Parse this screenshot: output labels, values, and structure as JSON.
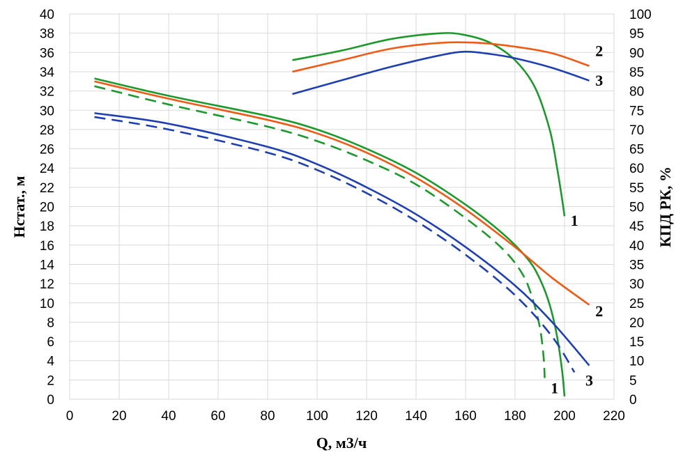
{
  "chart_data": {
    "type": "line",
    "xlabel": "Q, м3/ч",
    "ylabel_left": "Нстат., м",
    "ylabel_right": "КПД РК, %",
    "xlim": [
      0,
      220
    ],
    "ylim_left": [
      0,
      40
    ],
    "ylim_right": [
      0,
      100
    ],
    "x_ticks": [
      0,
      20,
      40,
      60,
      80,
      100,
      120,
      140,
      160,
      180,
      200,
      220
    ],
    "y_left_ticks": [
      0,
      2,
      4,
      6,
      8,
      10,
      12,
      14,
      16,
      18,
      20,
      22,
      24,
      26,
      28,
      30,
      32,
      34,
      36,
      38,
      40
    ],
    "y_right_ticks": [
      0,
      5,
      10,
      15,
      20,
      25,
      30,
      35,
      40,
      45,
      50,
      55,
      60,
      65,
      70,
      75,
      80,
      85,
      90,
      95,
      100
    ],
    "grid": true,
    "colors": {
      "green": "#1a9a2a",
      "orange": "#f05a14",
      "blue": "#1e3fb4"
    },
    "series": [
      {
        "axis": "left",
        "color": "green",
        "dash": false,
        "x": [
          10,
          40,
          80,
          100,
          120,
          140,
          160,
          175,
          185,
          190,
          194,
          197,
          199,
          200
        ],
        "y": [
          33.3,
          31.5,
          29.4,
          28.0,
          26.0,
          23.5,
          20.2,
          17.2,
          14.6,
          12.5,
          9.8,
          6.5,
          3.0,
          0.3
        ]
      },
      {
        "axis": "left",
        "color": "green",
        "dash": true,
        "x": [
          10,
          40,
          80,
          100,
          120,
          140,
          160,
          175,
          183,
          187,
          190,
          191.5,
          192
        ],
        "y": [
          32.5,
          30.6,
          28.3,
          26.8,
          24.8,
          22.3,
          18.8,
          15.6,
          13.0,
          10.5,
          7.5,
          4.5,
          2.2
        ]
      },
      {
        "axis": "left",
        "color": "orange",
        "dash": false,
        "x": [
          10,
          40,
          80,
          100,
          120,
          140,
          160,
          180,
          195,
          210
        ],
        "y": [
          33.0,
          31.2,
          29.0,
          27.6,
          25.6,
          23.0,
          19.7,
          15.8,
          12.6,
          9.8
        ]
      },
      {
        "axis": "left",
        "color": "blue",
        "dash": false,
        "x": [
          10,
          40,
          80,
          100,
          120,
          140,
          160,
          180,
          195,
          210
        ],
        "y": [
          29.7,
          28.6,
          26.2,
          24.4,
          22.0,
          19.2,
          15.8,
          11.8,
          8.0,
          3.5
        ]
      },
      {
        "axis": "left",
        "color": "blue",
        "dash": true,
        "x": [
          10,
          40,
          80,
          100,
          120,
          140,
          160,
          180,
          195,
          204
        ],
        "y": [
          29.3,
          28.0,
          25.6,
          23.8,
          21.4,
          18.5,
          15.0,
          10.8,
          6.5,
          2.8
        ]
      },
      {
        "axis": "right",
        "color": "green",
        "dash": false,
        "x": [
          90,
          110,
          130,
          150,
          160,
          170,
          180,
          188,
          194,
          197,
          199,
          200
        ],
        "y": [
          88.0,
          90.5,
          93.5,
          95.0,
          94.5,
          92.5,
          88.0,
          81.0,
          70.0,
          60.0,
          52.0,
          47.5
        ]
      },
      {
        "axis": "right",
        "color": "orange",
        "dash": false,
        "x": [
          90,
          110,
          130,
          150,
          165,
          180,
          195,
          210
        ],
        "y": [
          85.0,
          88.0,
          91.0,
          92.5,
          92.5,
          91.5,
          89.8,
          86.5
        ]
      },
      {
        "axis": "right",
        "color": "blue",
        "dash": false,
        "x": [
          90,
          110,
          130,
          150,
          160,
          170,
          180,
          195,
          210
        ],
        "y": [
          79.2,
          82.8,
          86.3,
          89.3,
          90.2,
          89.6,
          88.5,
          86.0,
          82.7
        ]
      }
    ],
    "annotations": [
      {
        "text": "2",
        "x": 214,
        "y_right": 90.5
      },
      {
        "text": "3",
        "x": 214,
        "y_right": 82.8
      },
      {
        "text": "1",
        "x": 204,
        "y_right": 46.5
      },
      {
        "text": "2",
        "x": 214,
        "y_left": 9.2
      },
      {
        "text": "3",
        "x": 210,
        "y_left": 2.0
      },
      {
        "text": "1",
        "x": 196,
        "y_left": 1.2
      }
    ]
  }
}
